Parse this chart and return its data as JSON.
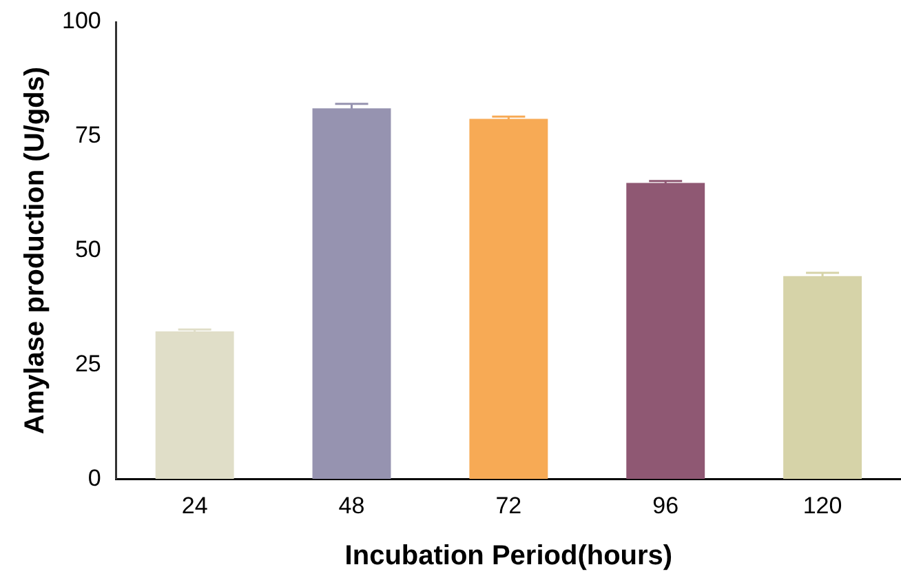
{
  "chart_data": {
    "type": "bar",
    "xlabel": "Incubation Period(hours)",
    "ylabel": "Amylase production (U/gds)",
    "categories": [
      "24",
      "48",
      "72",
      "96",
      "120"
    ],
    "values": [
      32.3,
      81.1,
      78.8,
      64.8,
      44.4
    ],
    "errors": [
      0.4,
      1.0,
      0.5,
      0.4,
      0.7
    ],
    "colors": [
      "#e0dec8",
      "#9693b0",
      "#f7aa55",
      "#8f5873",
      "#d6d3a8"
    ],
    "ylim": [
      0,
      100
    ],
    "yticks": [
      0,
      25,
      50,
      75,
      100
    ],
    "grid": false,
    "legend": false
  }
}
